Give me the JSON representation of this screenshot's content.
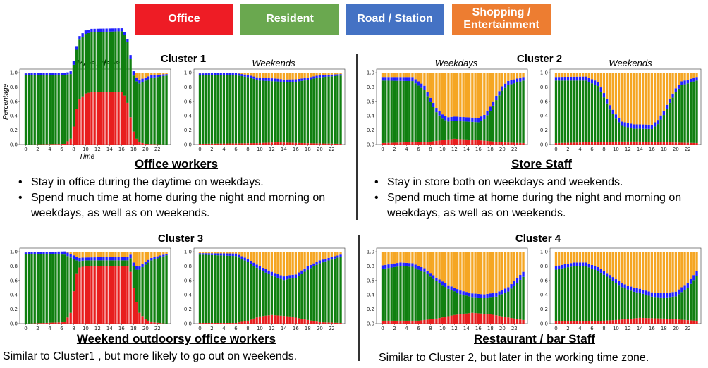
{
  "legend": [
    {
      "label": "Office",
      "color": "#ee1c25"
    },
    {
      "label": "Resident",
      "color": "#6aa84f"
    },
    {
      "label": "Road / Station",
      "color": "#4472c4"
    },
    {
      "label": "Shopping / Entertainment",
      "color": "#ed7d31"
    }
  ],
  "series_colors": {
    "office": "#e81e1e",
    "resident": "#108010",
    "road": "#2020ff",
    "shopping": "#f5a623"
  },
  "panel_labels": {
    "weekdays": "Weekdays",
    "weekends": "Weekends"
  },
  "axis": {
    "ylabel": "Percentage",
    "xlabel": "Time"
  },
  "clusters": [
    {
      "title": "Cluster 1",
      "profile": "Office workers",
      "bullets": [
        "Stay in office during the daytime on weekdays.",
        "Spend much time at home during the night and morning on weekdays, as well as on weekends."
      ],
      "summary": ""
    },
    {
      "title": "Cluster 2",
      "profile": "Store Staff",
      "bullets": [
        "Stay in store both on weekdays and weekends.",
        "Spend much time at home during the night and morning on weekdays, as well as on weekends."
      ],
      "summary": ""
    },
    {
      "title": "Cluster 3",
      "profile": "Weekend outdoorsy office workers",
      "bullets": [],
      "summary": "Similar to Cluster1 , but more likely to go out on weekends."
    },
    {
      "title": "Cluster 4",
      "profile": "Restaurant / bar Staff",
      "bullets": [],
      "summary": "Similar to Cluster 2, but later in the working time zone."
    }
  ],
  "chart_data": [
    {
      "type": "bar",
      "stacked": true,
      "cluster": "Cluster 1",
      "panel": "Weekdays",
      "x_range": [
        0,
        23.5
      ],
      "ylim": [
        0,
        1.0
      ],
      "yticks": [
        "0.0",
        "0.2",
        "0.4",
        "0.6",
        "0.8",
        "1.0"
      ],
      "xticks": [
        "0",
        "2",
        "4",
        "6",
        "8",
        "10",
        "12",
        "14",
        "16",
        "18",
        "20",
        "22"
      ],
      "series_order": [
        "office",
        "resident",
        "road",
        "shopping"
      ],
      "office_keys": [
        [
          0,
          0
        ],
        [
          6.5,
          0.01
        ],
        [
          7.5,
          0.08
        ],
        [
          8,
          0.25
        ],
        [
          8.5,
          0.5
        ],
        [
          9,
          0.63
        ],
        [
          10,
          0.71
        ],
        [
          11,
          0.73
        ],
        [
          16,
          0.73
        ],
        [
          16.5,
          0.68
        ],
        [
          17,
          0.58
        ],
        [
          17.5,
          0.38
        ],
        [
          18,
          0.18
        ],
        [
          18.5,
          0.08
        ],
        [
          19,
          0.03
        ],
        [
          20,
          0.01
        ],
        [
          23.5,
          0
        ]
      ],
      "resident_keys": [
        [
          0,
          0.97
        ],
        [
          6.5,
          0.96
        ],
        [
          7.5,
          0.9
        ],
        [
          8.5,
          0.82
        ],
        [
          9,
          0.83
        ],
        [
          10,
          0.83
        ],
        [
          17,
          0.85
        ],
        [
          18,
          0.78
        ],
        [
          19,
          0.82
        ],
        [
          20,
          0.88
        ],
        [
          21,
          0.92
        ],
        [
          23.5,
          0.96
        ]
      ],
      "road_keys": [
        [
          0,
          0.02
        ],
        [
          7,
          0.03
        ],
        [
          8,
          0.05
        ],
        [
          9,
          0.05
        ],
        [
          17,
          0.04
        ],
        [
          18,
          0.06
        ],
        [
          19,
          0.05
        ],
        [
          23.5,
          0.02
        ]
      ]
    },
    {
      "type": "bar",
      "stacked": true,
      "cluster": "Cluster 1",
      "panel": "Weekends",
      "x_range": [
        0,
        23.5
      ],
      "ylim": [
        0,
        1.0
      ],
      "yticks": [
        "0.0",
        "0.2",
        "0.4",
        "0.6",
        "0.8",
        "1.0"
      ],
      "xticks": [
        "0",
        "2",
        "4",
        "6",
        "8",
        "10",
        "12",
        "14",
        "16",
        "18",
        "20",
        "22"
      ],
      "series_order": [
        "office",
        "resident",
        "road",
        "shopping"
      ],
      "office_keys": [
        [
          0,
          0.01
        ],
        [
          10,
          0.02
        ],
        [
          13,
          0.03
        ],
        [
          17,
          0.02
        ],
        [
          23.5,
          0.01
        ]
      ],
      "resident_keys": [
        [
          0,
          0.96
        ],
        [
          6,
          0.95
        ],
        [
          8,
          0.92
        ],
        [
          10,
          0.87
        ],
        [
          14,
          0.84
        ],
        [
          16,
          0.85
        ],
        [
          18,
          0.88
        ],
        [
          20,
          0.92
        ],
        [
          23.5,
          0.95
        ]
      ],
      "road_keys": [
        [
          0,
          0.02
        ],
        [
          8,
          0.03
        ],
        [
          12,
          0.04
        ],
        [
          20,
          0.03
        ],
        [
          23.5,
          0.02
        ]
      ]
    },
    {
      "type": "bar",
      "stacked": true,
      "cluster": "Cluster 2",
      "panel": "Weekdays",
      "x_range": [
        0,
        23.5
      ],
      "ylim": [
        0,
        1.0
      ],
      "yticks": [
        "0.0",
        "0.2",
        "0.4",
        "0.6",
        "0.8",
        "1.0"
      ],
      "xticks": [
        "0",
        "2",
        "4",
        "6",
        "8",
        "10",
        "12",
        "14",
        "16",
        "18",
        "20",
        "22"
      ],
      "series_order": [
        "office",
        "resident",
        "road",
        "shopping"
      ],
      "office_keys": [
        [
          0,
          0.02
        ],
        [
          8,
          0.04
        ],
        [
          12,
          0.08
        ],
        [
          16,
          0.06
        ],
        [
          20,
          0.03
        ],
        [
          23.5,
          0.02
        ]
      ],
      "resident_keys": [
        [
          0,
          0.87
        ],
        [
          5,
          0.85
        ],
        [
          7,
          0.72
        ],
        [
          8,
          0.55
        ],
        [
          9,
          0.4
        ],
        [
          10,
          0.3
        ],
        [
          11,
          0.25
        ],
        [
          16,
          0.25
        ],
        [
          17,
          0.3
        ],
        [
          18,
          0.42
        ],
        [
          19,
          0.58
        ],
        [
          20,
          0.72
        ],
        [
          21,
          0.8
        ],
        [
          23.5,
          0.87
        ]
      ],
      "road_keys": [
        [
          0,
          0.05
        ],
        [
          7,
          0.06
        ],
        [
          9,
          0.06
        ],
        [
          16,
          0.06
        ],
        [
          20,
          0.06
        ],
        [
          23.5,
          0.05
        ]
      ]
    },
    {
      "type": "bar",
      "stacked": true,
      "cluster": "Cluster 2",
      "panel": "Weekends",
      "x_range": [
        0,
        23.5
      ],
      "ylim": [
        0,
        1.0
      ],
      "yticks": [
        "0.0",
        "0.2",
        "0.4",
        "0.6",
        "0.8",
        "1.0"
      ],
      "xticks": [
        "0",
        "2",
        "4",
        "6",
        "8",
        "10",
        "12",
        "14",
        "16",
        "18",
        "20",
        "22"
      ],
      "series_order": [
        "office",
        "resident",
        "road",
        "shopping"
      ],
      "office_keys": [
        [
          0,
          0.02
        ],
        [
          10,
          0.04
        ],
        [
          14,
          0.04
        ],
        [
          23.5,
          0.02
        ]
      ],
      "resident_keys": [
        [
          0,
          0.87
        ],
        [
          5,
          0.86
        ],
        [
          7,
          0.78
        ],
        [
          8,
          0.62
        ],
        [
          9,
          0.45
        ],
        [
          10,
          0.32
        ],
        [
          11,
          0.22
        ],
        [
          13,
          0.18
        ],
        [
          16,
          0.18
        ],
        [
          17,
          0.25
        ],
        [
          18,
          0.38
        ],
        [
          19,
          0.55
        ],
        [
          20,
          0.7
        ],
        [
          21,
          0.8
        ],
        [
          23.5,
          0.87
        ]
      ],
      "road_keys": [
        [
          0,
          0.05
        ],
        [
          8,
          0.06
        ],
        [
          16,
          0.06
        ],
        [
          23.5,
          0.05
        ]
      ]
    },
    {
      "type": "bar",
      "stacked": true,
      "cluster": "Cluster 3",
      "panel": "Weekdays",
      "x_range": [
        0,
        23.5
      ],
      "ylim": [
        0,
        1.0
      ],
      "yticks": [
        "0.0",
        "0.2",
        "0.4",
        "0.6",
        "0.8",
        "1.0"
      ],
      "xticks": [
        "0",
        "2",
        "4",
        "6",
        "8",
        "10",
        "12",
        "14",
        "16",
        "18",
        "20",
        "22"
      ],
      "series_order": [
        "office",
        "resident",
        "road",
        "shopping"
      ],
      "office_keys": [
        [
          0,
          0
        ],
        [
          6.5,
          0.02
        ],
        [
          7.5,
          0.15
        ],
        [
          8,
          0.45
        ],
        [
          8.5,
          0.7
        ],
        [
          9,
          0.78
        ],
        [
          10,
          0.8
        ],
        [
          17,
          0.8
        ],
        [
          17.5,
          0.72
        ],
        [
          18,
          0.5
        ],
        [
          18.5,
          0.3
        ],
        [
          19,
          0.15
        ],
        [
          20,
          0.06
        ],
        [
          21,
          0.02
        ],
        [
          23.5,
          0
        ]
      ],
      "resident_keys": [
        [
          0,
          0.97
        ],
        [
          6.5,
          0.94
        ],
        [
          7.5,
          0.77
        ],
        [
          8,
          0.45
        ],
        [
          8.5,
          0.18
        ],
        [
          9,
          0.09
        ],
        [
          10,
          0.08
        ],
        [
          17,
          0.08
        ],
        [
          18,
          0.3
        ],
        [
          19,
          0.6
        ],
        [
          20,
          0.76
        ],
        [
          21,
          0.86
        ],
        [
          23.5,
          0.95
        ]
      ],
      "road_keys": [
        [
          0,
          0.02
        ],
        [
          8,
          0.05
        ],
        [
          10,
          0.04
        ],
        [
          18,
          0.05
        ],
        [
          23.5,
          0.02
        ]
      ]
    },
    {
      "type": "bar",
      "stacked": true,
      "cluster": "Cluster 3",
      "panel": "Weekends",
      "x_range": [
        0,
        23.5
      ],
      "ylim": [
        0,
        1.0
      ],
      "yticks": [
        "0.0",
        "0.2",
        "0.4",
        "0.6",
        "0.8",
        "1.0"
      ],
      "xticks": [
        "0",
        "2",
        "4",
        "6",
        "8",
        "10",
        "12",
        "14",
        "16",
        "18",
        "20",
        "22"
      ],
      "series_order": [
        "office",
        "resident",
        "road",
        "shopping"
      ],
      "office_keys": [
        [
          0,
          0.01
        ],
        [
          6,
          0.01
        ],
        [
          8,
          0.04
        ],
        [
          10,
          0.1
        ],
        [
          12,
          0.12
        ],
        [
          15,
          0.1
        ],
        [
          18,
          0.05
        ],
        [
          20,
          0.02
        ],
        [
          23.5,
          0.01
        ]
      ],
      "resident_keys": [
        [
          0,
          0.95
        ],
        [
          6,
          0.93
        ],
        [
          8,
          0.82
        ],
        [
          10,
          0.65
        ],
        [
          12,
          0.55
        ],
        [
          14,
          0.5
        ],
        [
          16,
          0.55
        ],
        [
          18,
          0.7
        ],
        [
          20,
          0.82
        ],
        [
          23.5,
          0.92
        ]
      ],
      "road_keys": [
        [
          0,
          0.02
        ],
        [
          8,
          0.04
        ],
        [
          12,
          0.05
        ],
        [
          16,
          0.05
        ],
        [
          20,
          0.04
        ],
        [
          23.5,
          0.03
        ]
      ]
    },
    {
      "type": "bar",
      "stacked": true,
      "cluster": "Cluster 4",
      "panel": "Weekdays",
      "x_range": [
        0,
        23.5
      ],
      "ylim": [
        0,
        1.0
      ],
      "yticks": [
        "0.0",
        "0.2",
        "0.4",
        "0.6",
        "0.8",
        "1.0"
      ],
      "xticks": [
        "0",
        "2",
        "4",
        "6",
        "8",
        "10",
        "12",
        "14",
        "16",
        "18",
        "20",
        "22"
      ],
      "series_order": [
        "office",
        "resident",
        "road",
        "shopping"
      ],
      "office_keys": [
        [
          0,
          0.04
        ],
        [
          6,
          0.04
        ],
        [
          9,
          0.07
        ],
        [
          12,
          0.12
        ],
        [
          15,
          0.15
        ],
        [
          18,
          0.13
        ],
        [
          20,
          0.1
        ],
        [
          23.5,
          0.05
        ]
      ],
      "resident_keys": [
        [
          0,
          0.72
        ],
        [
          3,
          0.76
        ],
        [
          5,
          0.75
        ],
        [
          7,
          0.67
        ],
        [
          9,
          0.52
        ],
        [
          11,
          0.38
        ],
        [
          13,
          0.28
        ],
        [
          15,
          0.22
        ],
        [
          17,
          0.22
        ],
        [
          19,
          0.26
        ],
        [
          21,
          0.36
        ],
        [
          23.5,
          0.6
        ]
      ],
      "road_keys": [
        [
          0,
          0.05
        ],
        [
          6,
          0.05
        ],
        [
          12,
          0.05
        ],
        [
          18,
          0.05
        ],
        [
          23.5,
          0.07
        ]
      ]
    },
    {
      "type": "bar",
      "stacked": true,
      "cluster": "Cluster 4",
      "panel": "Weekends",
      "x_range": [
        0,
        23.5
      ],
      "ylim": [
        0,
        1.0
      ],
      "yticks": [
        "0.0",
        "0.2",
        "0.4",
        "0.6",
        "0.8",
        "1.0"
      ],
      "xticks": [
        "0",
        "2",
        "4",
        "6",
        "8",
        "10",
        "12",
        "14",
        "16",
        "18",
        "20",
        "22"
      ],
      "series_order": [
        "office",
        "resident",
        "road",
        "shopping"
      ],
      "office_keys": [
        [
          0,
          0.03
        ],
        [
          6,
          0.03
        ],
        [
          10,
          0.05
        ],
        [
          14,
          0.08
        ],
        [
          18,
          0.07
        ],
        [
          23.5,
          0.04
        ]
      ],
      "resident_keys": [
        [
          0,
          0.72
        ],
        [
          3,
          0.77
        ],
        [
          5,
          0.77
        ],
        [
          7,
          0.7
        ],
        [
          9,
          0.58
        ],
        [
          11,
          0.45
        ],
        [
          13,
          0.37
        ],
        [
          16,
          0.3
        ],
        [
          18,
          0.29
        ],
        [
          20,
          0.32
        ],
        [
          22,
          0.45
        ],
        [
          23.5,
          0.62
        ]
      ],
      "road_keys": [
        [
          0,
          0.05
        ],
        [
          8,
          0.05
        ],
        [
          16,
          0.06
        ],
        [
          23.5,
          0.07
        ]
      ]
    }
  ]
}
